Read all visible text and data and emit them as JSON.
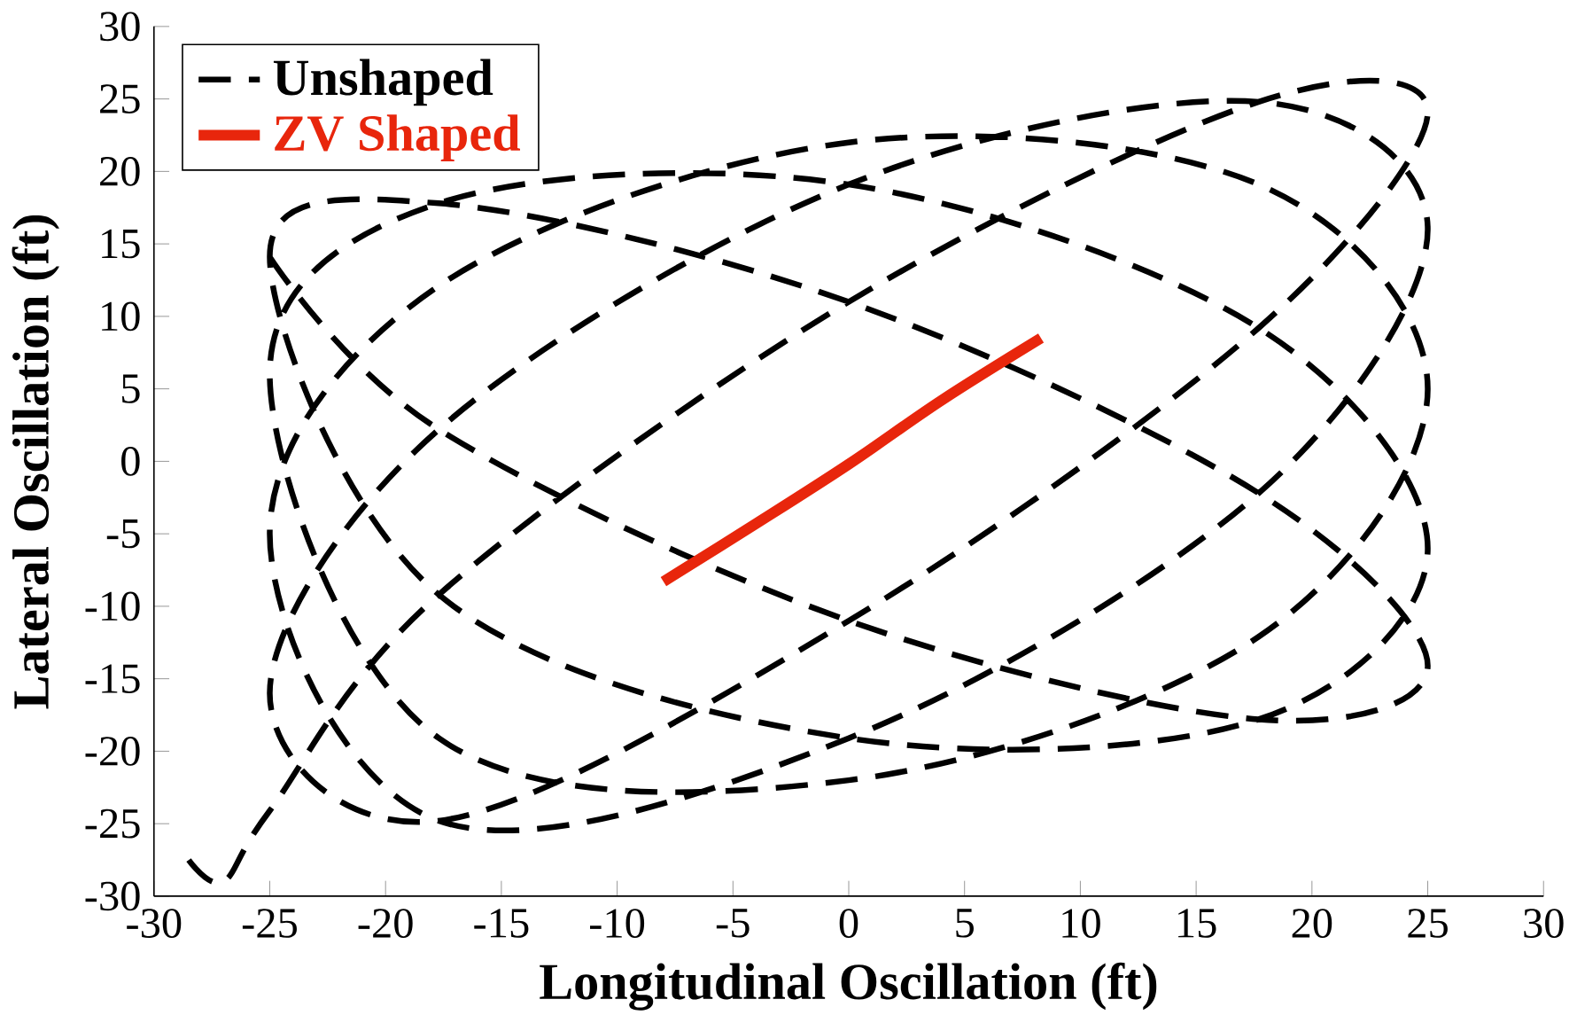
{
  "chart_data": {
    "type": "line",
    "xlabel": "Longitudinal Oscillation (ft)",
    "ylabel": "Lateral Oscillation (ft)",
    "xlim": [
      -30,
      30
    ],
    "ylim": [
      -30,
      30
    ],
    "xticks": [
      -30,
      -25,
      -20,
      -15,
      -10,
      -5,
      0,
      5,
      10,
      15,
      20,
      25,
      30
    ],
    "yticks": [
      -30,
      -25,
      -20,
      -15,
      -10,
      -5,
      0,
      5,
      10,
      15,
      20,
      25,
      30
    ],
    "grid": false,
    "legend": "top left",
    "marker": "none",
    "series": [
      {
        "name": "Unshaped",
        "color": "#000000",
        "line_style": "dashed",
        "x": [
          -28.5,
          -27,
          -25,
          -17.7,
          0,
          17.7,
          25,
          17.7,
          0,
          -17.7,
          -25,
          -17.7,
          0,
          17.7,
          25,
          17.7,
          0,
          -17.7,
          -25,
          -17.7,
          0,
          17.7,
          25,
          17.7,
          0,
          -17.7,
          -25,
          -17.7,
          0,
          17.7,
          25,
          17.7,
          0,
          -17.7,
          -25,
          -17.7,
          0,
          17.7,
          25,
          17.7,
          0,
          -17.7,
          -25
        ],
        "values": [
          -27.5,
          -29,
          -24.1,
          -9.2,
          11,
          24.8,
          24.1,
          9.2,
          -11,
          -24.8,
          -16,
          2.2,
          19.1,
          24.8,
          16,
          -2.2,
          -19.1,
          -24.8,
          -5,
          12.1,
          22,
          19.1,
          5,
          -12.1,
          -22,
          -19.1,
          6,
          17.8,
          19.1,
          9.2,
          -6,
          -17.8,
          -19.1,
          -9.2,
          14.1,
          17.8,
          11,
          -2.2,
          -14.1,
          -17.8,
          -11,
          2.2,
          14.1
        ]
      },
      {
        "name": "ZV Shaped",
        "color": "#e8260c",
        "line_style": "solid",
        "x": [
          -8,
          -4,
          0,
          4,
          8.3
        ],
        "values": [
          -8.3,
          -4.3,
          -0.2,
          4.2,
          8.5
        ]
      }
    ]
  }
}
